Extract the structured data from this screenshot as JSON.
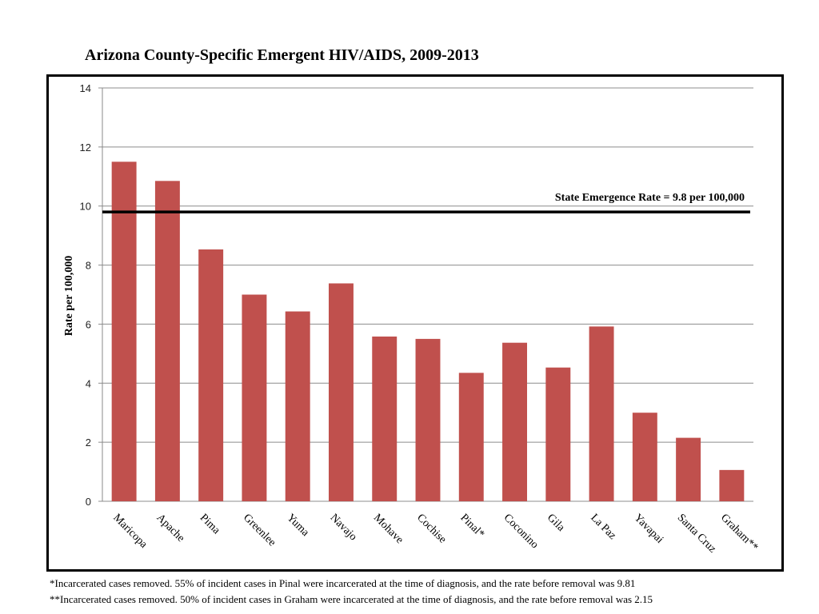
{
  "chart_data": {
    "type": "bar",
    "title": "Arizona County-Specific Emergent HIV/AIDS, 2009-2013",
    "xlabel": "",
    "ylabel": "Rate per 100,000",
    "ylim": [
      0,
      14
    ],
    "yticks": [
      0,
      2,
      4,
      6,
      8,
      10,
      12,
      14
    ],
    "grid": true,
    "categories": [
      "Maricopa",
      "Apache",
      "Pima",
      "Greenlee",
      "Yuma",
      "Navajo",
      "Mohave",
      "Cochise",
      "Pinal*",
      "Coconino",
      "Gila",
      "La Paz",
      "Yavapai",
      "Santa Cruz",
      "Graham**"
    ],
    "values": [
      11.5,
      10.85,
      8.53,
      7.0,
      6.43,
      7.38,
      5.58,
      5.5,
      4.35,
      5.37,
      4.53,
      5.92,
      3.0,
      2.15,
      1.06
    ],
    "bar_color": "#c0504d",
    "reference_line": {
      "value": 9.8,
      "label": "State Emergence Rate = 9.8 per 100,000",
      "color": "#000000"
    }
  },
  "footnotes": [
    "*Incarcerated cases removed. 55% of incident cases in Pinal were incarcerated at the time of diagnosis, and the rate before removal was 9.81",
    "**Incarcerated cases removed. 50% of incident cases in Graham were incarcerated at the time of diagnosis, and the rate before removal was 2.15"
  ]
}
